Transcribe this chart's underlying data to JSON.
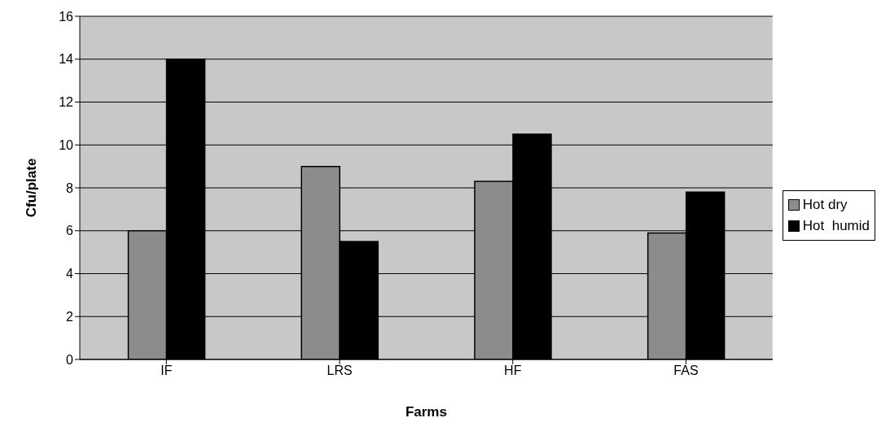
{
  "chart_data": {
    "type": "bar",
    "xlabel": "Farms",
    "ylabel": "Cfu/plate",
    "categories": [
      "IF",
      "LRS",
      "HF",
      "FAS"
    ],
    "series": [
      {
        "name": "Hot dry",
        "color": "#8c8c8c",
        "values": [
          6,
          9,
          8.3,
          5.9
        ]
      },
      {
        "name": "Hot  humid",
        "color": "#000000",
        "values": [
          14,
          5.5,
          10.5,
          7.8
        ]
      }
    ],
    "ylim": [
      0,
      16
    ],
    "yticks": [
      0,
      2,
      4,
      6,
      8,
      10,
      12,
      14,
      16
    ],
    "grid": "y",
    "legend": "right"
  }
}
